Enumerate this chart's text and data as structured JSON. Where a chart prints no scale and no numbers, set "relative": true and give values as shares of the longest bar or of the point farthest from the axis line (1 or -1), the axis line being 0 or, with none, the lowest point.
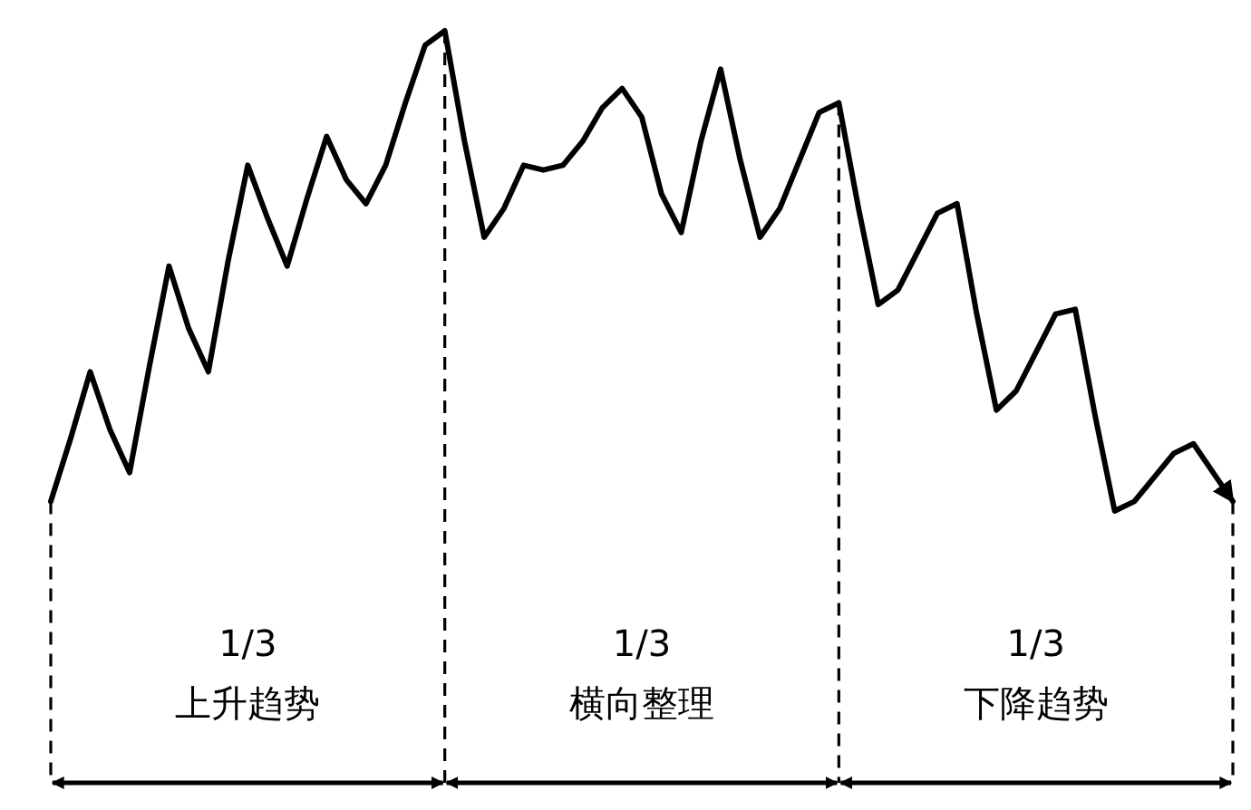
{
  "chart_data": {
    "type": "line",
    "relative": true,
    "line_style": "solid",
    "categories": [
      null,
      null,
      null,
      null,
      null,
      null,
      null,
      null,
      null,
      null,
      null,
      null,
      null,
      null,
      null,
      null,
      null,
      null,
      null,
      null,
      null,
      null,
      null,
      null,
      null,
      null,
      null,
      null,
      null,
      null,
      null,
      null,
      null,
      null,
      null,
      null,
      null,
      null,
      null,
      null,
      null,
      null,
      null,
      null,
      null,
      null,
      null,
      null,
      null,
      null,
      null,
      null,
      null,
      null,
      null,
      null,
      null,
      null,
      null,
      null,
      null
    ],
    "series": [
      {
        "color": "#000000",
        "values": [
          0.02,
          0.15,
          0.29,
          0.17,
          0.08,
          0.3,
          0.51,
          0.38,
          0.29,
          0.52,
          0.72,
          0.61,
          0.51,
          0.65,
          0.78,
          0.69,
          0.64,
          0.72,
          0.85,
          0.97,
          1.0,
          0.77,
          0.57,
          0.63,
          0.72,
          0.71,
          0.72,
          0.77,
          0.84,
          0.88,
          0.82,
          0.66,
          0.58,
          0.77,
          0.92,
          0.73,
          0.57,
          0.63,
          0.73,
          0.83,
          0.85,
          0.63,
          0.43,
          0.46,
          0.54,
          0.62,
          0.64,
          0.41,
          0.21,
          0.25,
          0.33,
          0.41,
          0.42,
          0.2,
          0.0,
          0.02,
          0.07,
          0.12,
          0.14,
          0.08,
          0.02
        ]
      }
    ],
    "annotations": [
      "1/3\n上升趋势",
      "1/3\n横向整理",
      "1/3\n下降趋势"
    ]
  }
}
